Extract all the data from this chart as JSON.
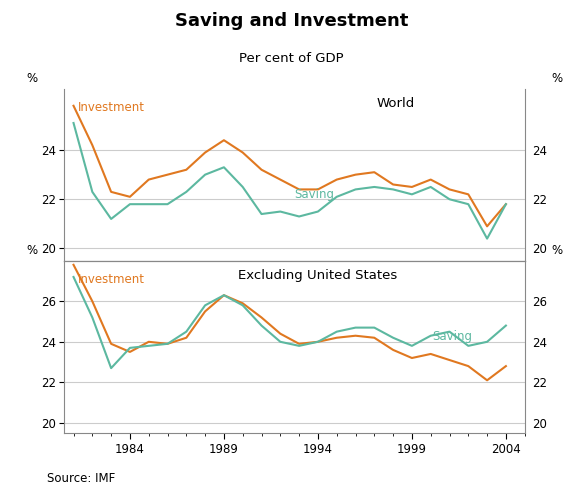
{
  "title": "Saving and Investment",
  "subtitle": "Per cent of GDP",
  "source": "Source: IMF",
  "investment_color": "#E07820",
  "saving_color": "#5CB8A0",
  "years": [
    1981,
    1982,
    1983,
    1984,
    1985,
    1986,
    1987,
    1988,
    1989,
    1990,
    1991,
    1992,
    1993,
    1994,
    1995,
    1996,
    1997,
    1998,
    1999,
    2000,
    2001,
    2002,
    2003,
    2004
  ],
  "world_investment": [
    25.8,
    24.2,
    22.3,
    22.1,
    22.8,
    23.0,
    23.2,
    23.9,
    24.4,
    23.9,
    23.2,
    22.8,
    22.4,
    22.4,
    22.8,
    23.0,
    23.1,
    22.6,
    22.5,
    22.8,
    22.4,
    22.2,
    20.9,
    21.8
  ],
  "world_saving": [
    25.1,
    22.3,
    21.2,
    21.8,
    21.8,
    21.8,
    22.3,
    23.0,
    23.3,
    22.5,
    21.4,
    21.5,
    21.3,
    21.5,
    22.1,
    22.4,
    22.5,
    22.4,
    22.2,
    22.5,
    22.0,
    21.8,
    20.4,
    21.8
  ],
  "excl_us_investment": [
    27.8,
    26.0,
    23.9,
    23.5,
    24.0,
    23.9,
    24.2,
    25.5,
    26.3,
    25.9,
    25.2,
    24.4,
    23.9,
    24.0,
    24.2,
    24.3,
    24.2,
    23.6,
    23.2,
    23.4,
    23.1,
    22.8,
    22.1,
    22.8
  ],
  "excl_us_saving": [
    27.2,
    25.2,
    22.7,
    23.7,
    23.8,
    23.9,
    24.5,
    25.8,
    26.3,
    25.8,
    24.8,
    24.0,
    23.8,
    24.0,
    24.5,
    24.7,
    24.7,
    24.2,
    23.8,
    24.3,
    24.5,
    23.8,
    24.0,
    24.8
  ],
  "world_ylim": [
    19.5,
    26.5
  ],
  "excl_ylim": [
    19.5,
    28.0
  ],
  "world_yticks": [
    20,
    22,
    24
  ],
  "excl_yticks": [
    20,
    22,
    24,
    26
  ],
  "xticks": [
    1984,
    1989,
    1994,
    1999,
    2004
  ],
  "background_color": "#ffffff",
  "grid_color": "#cccccc",
  "spine_color": "#888888"
}
